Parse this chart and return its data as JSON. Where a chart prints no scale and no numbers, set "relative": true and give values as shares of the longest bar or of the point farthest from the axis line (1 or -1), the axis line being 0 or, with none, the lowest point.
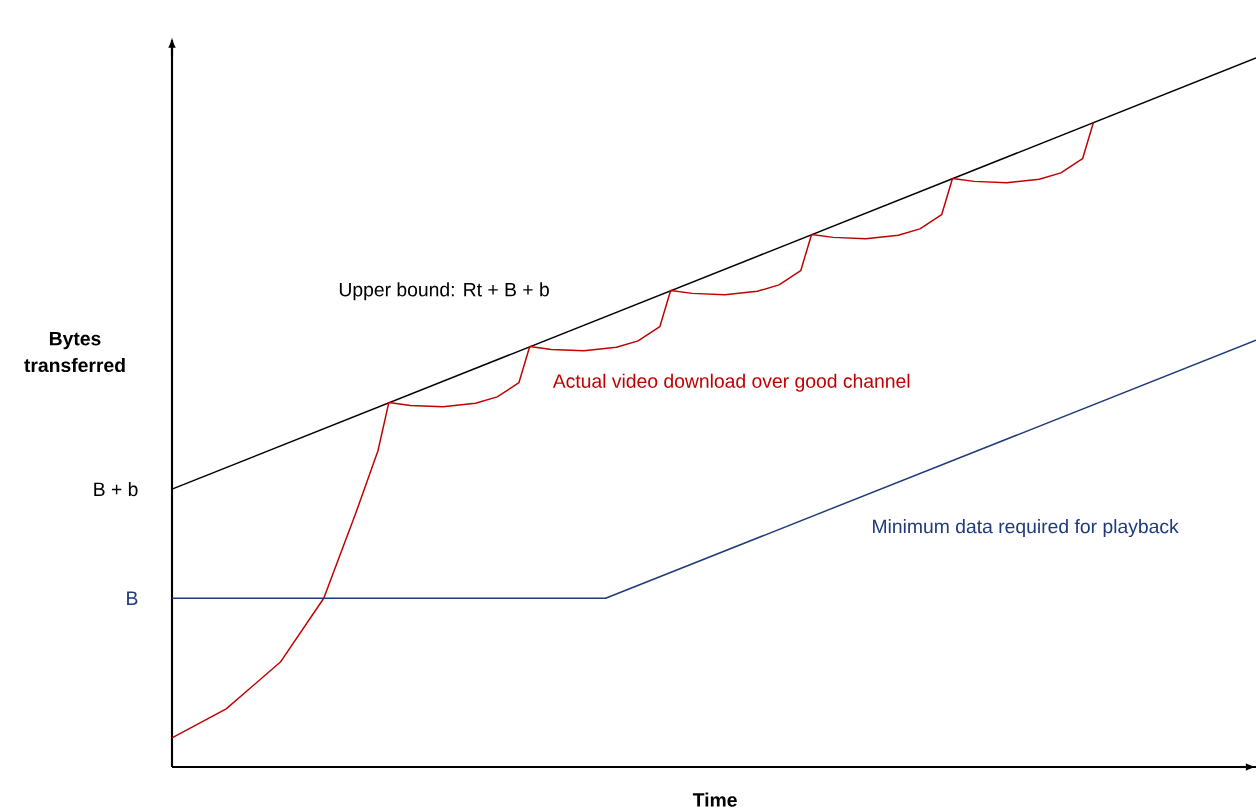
{
  "chart_data": {
    "type": "line",
    "relative": true,
    "xlabel": "Time",
    "ylabel": "Bytes transferred",
    "marker": "none",
    "annotations": [
      "B + b",
      "B"
    ],
    "categories": [
      null,
      null,
      null,
      null,
      null,
      null,
      null,
      null,
      null,
      null,
      null,
      null,
      null,
      null,
      null,
      null,
      null,
      null,
      null,
      null,
      null,
      null,
      null,
      null,
      null,
      null,
      null,
      null,
      null,
      null,
      null,
      null,
      null,
      null,
      null,
      null,
      null,
      null,
      null,
      null,
      null,
      null,
      null,
      null,
      null,
      null,
      null,
      null,
      null,
      null,
      null,
      null,
      null,
      null,
      null,
      null,
      null,
      null,
      null,
      null,
      null,
      null,
      null,
      null,
      null,
      null,
      null,
      null,
      null,
      null,
      null,
      null,
      null,
      null,
      null,
      null,
      null,
      null,
      null,
      null,
      null,
      null,
      null,
      null,
      null,
      null,
      null,
      null,
      null,
      null,
      null,
      null,
      null,
      null,
      null,
      null,
      null,
      null,
      null,
      null,
      null
    ],
    "series": [
      {
        "name": "Upper bound: Rt + B + b",
        "color": "#000000",
        "values": [
          0.392,
          null,
          null,
          null,
          null,
          null,
          null,
          null,
          null,
          null,
          null,
          null,
          null,
          null,
          null,
          null,
          null,
          null,
          null,
          null,
          null,
          null,
          null,
          null,
          null,
          null,
          null,
          null,
          null,
          null,
          null,
          null,
          null,
          null,
          null,
          null,
          null,
          null,
          null,
          null,
          null,
          null,
          null,
          null,
          null,
          null,
          null,
          null,
          null,
          null,
          null,
          null,
          null,
          null,
          null,
          null,
          null,
          null,
          null,
          null,
          null,
          null,
          null,
          null,
          null,
          null,
          null,
          null,
          null,
          null,
          null,
          null,
          null,
          null,
          null,
          null,
          null,
          null,
          null,
          null,
          null,
          null,
          null,
          null,
          null,
          null,
          null,
          null,
          null,
          null,
          null,
          null,
          null,
          null,
          null,
          null,
          null,
          null,
          null,
          null,
          1
        ]
      },
      {
        "name": "Actual video download over good channel",
        "color": "#c00000",
        "values": [
          0.041,
          null,
          null,
          null,
          null,
          0.082,
          null,
          null,
          null,
          null,
          0.148,
          null,
          null,
          null,
          0.238,
          null,
          null,
          0.36,
          null,
          0.446,
          0.514,
          null,
          0.51,
          null,
          null,
          0.508,
          null,
          null,
          0.513,
          null,
          0.522,
          null,
          0.542,
          0.593,
          null,
          0.589,
          null,
          null,
          0.587,
          null,
          null,
          0.592,
          null,
          0.601,
          null,
          0.621,
          0.672,
          null,
          0.668,
          null,
          null,
          0.666,
          null,
          null,
          0.671,
          null,
          0.68,
          null,
          0.7,
          0.751,
          null,
          0.747,
          null,
          null,
          0.745,
          null,
          null,
          0.75,
          null,
          0.759,
          null,
          0.779,
          0.83,
          null,
          0.826,
          null,
          null,
          0.824,
          null,
          null,
          0.829,
          null,
          0.838,
          null,
          0.858,
          0.909,
          null,
          null,
          null,
          null,
          null,
          null,
          null,
          null,
          null,
          null,
          null,
          null,
          null,
          null,
          null
        ]
      },
      {
        "name": "Minimum data required for playback",
        "color": "#1f3a7a",
        "values": [
          0.238,
          null,
          null,
          null,
          null,
          null,
          null,
          null,
          null,
          null,
          null,
          null,
          null,
          null,
          null,
          null,
          null,
          null,
          null,
          null,
          null,
          null,
          null,
          null,
          null,
          null,
          null,
          null,
          null,
          null,
          null,
          null,
          null,
          null,
          null,
          null,
          null,
          null,
          null,
          null,
          0.238,
          null,
          null,
          null,
          null,
          null,
          null,
          null,
          null,
          null,
          null,
          null,
          null,
          null,
          null,
          null,
          null,
          null,
          null,
          null,
          null,
          null,
          null,
          null,
          null,
          null,
          null,
          null,
          null,
          null,
          null,
          null,
          null,
          null,
          null,
          null,
          null,
          null,
          null,
          null,
          null,
          null,
          null,
          null,
          null,
          null,
          null,
          null,
          null,
          null,
          null,
          null,
          null,
          null,
          null,
          null,
          null,
          null,
          null,
          null,
          0.602
        ]
      }
    ]
  }
}
